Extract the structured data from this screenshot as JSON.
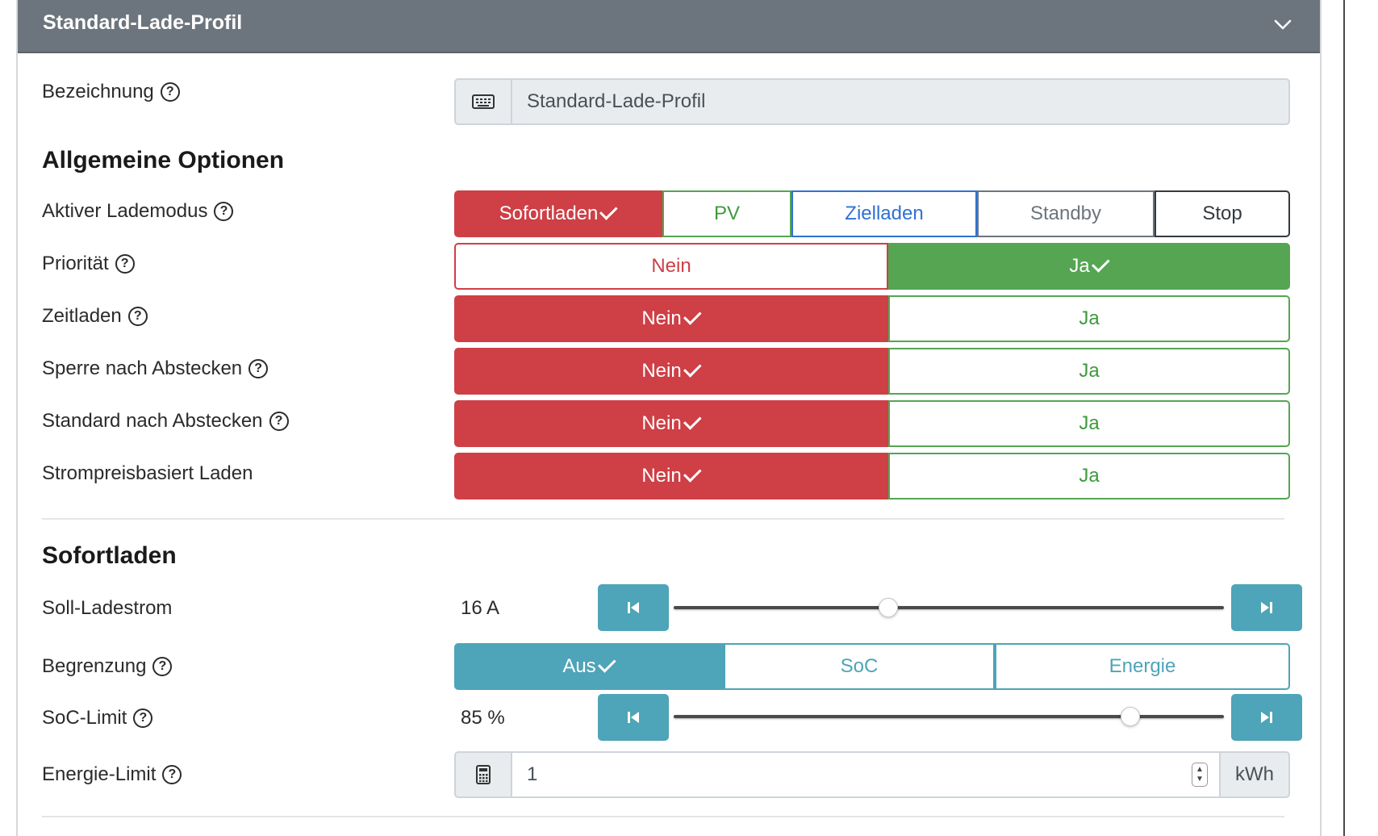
{
  "header": {
    "title": "Standard-Lade-Profil"
  },
  "bezeichnung": {
    "label": "Bezeichnung",
    "value": "Standard-Lade-Profil"
  },
  "allgemeine": {
    "heading": "Allgemeine Optionen",
    "lademodus": {
      "label": "Aktiver Lademodus",
      "options": [
        "Sofortladen",
        "PV",
        "Zielladen",
        "Standby",
        "Stop"
      ],
      "selected": "Sofortladen"
    },
    "prioritaet": {
      "label": "Priorität",
      "no": "Nein",
      "yes": "Ja",
      "selected": "Ja"
    },
    "zeitladen": {
      "label": "Zeitladen",
      "no": "Nein",
      "yes": "Ja",
      "selected": "Nein"
    },
    "sperre": {
      "label": "Sperre nach Abstecken",
      "no": "Nein",
      "yes": "Ja",
      "selected": "Nein"
    },
    "standard": {
      "label": "Standard nach Abstecken",
      "no": "Nein",
      "yes": "Ja",
      "selected": "Nein"
    },
    "strompreis": {
      "label": "Strompreisbasiert Laden",
      "no": "Nein",
      "yes": "Ja",
      "selected": "Nein"
    }
  },
  "sofortladen": {
    "heading": "Sofortladen",
    "soll_ladestrom": {
      "label": "Soll-Ladestrom",
      "value": "16 A",
      "slider_fraction": 0.39
    },
    "begrenzung": {
      "label": "Begrenzung",
      "options": [
        "Aus",
        "SoC",
        "Energie"
      ],
      "selected": "Aus"
    },
    "soc_limit": {
      "label": "SoC-Limit",
      "value": "85 %",
      "slider_fraction": 0.83
    },
    "energie_limit": {
      "label": "Energie-Limit",
      "value": "1",
      "unit": "kWh"
    }
  },
  "colors": {
    "header": "#6c757d",
    "danger": "#ce3f46",
    "success": "#55a553",
    "primary": "#2f72d3",
    "info": "#4ea4b8"
  },
  "icons": {
    "collapse": "chevron-down-icon",
    "keyboard": "keyboard-icon",
    "calculator": "calculator-icon",
    "help": "question-circle-icon",
    "step_back": "step-backward-icon",
    "step_forward": "step-forward-icon"
  }
}
